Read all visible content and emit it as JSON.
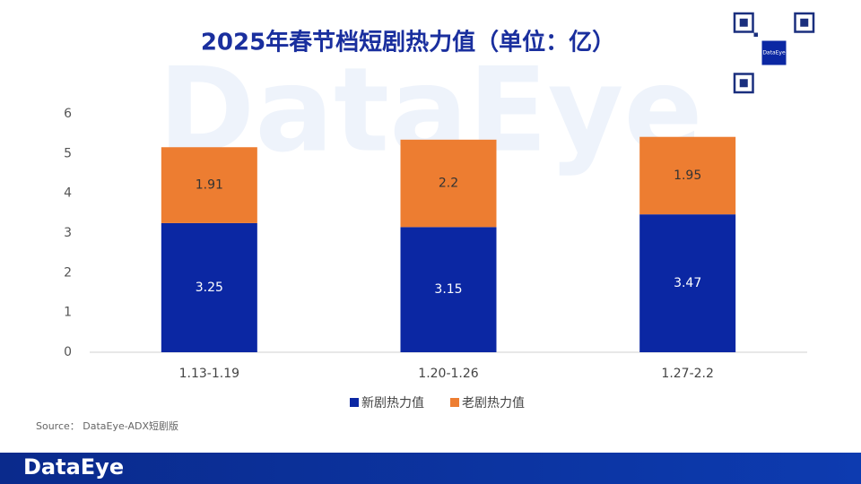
{
  "chart_data": {
    "type": "stacked_bar",
    "title": "2025年春节档短剧热力值（单位：亿）",
    "categories": [
      "1.13-1.19",
      "1.20-1.26",
      "1.27-2.2"
    ],
    "series": [
      {
        "name": "新剧热力值",
        "color": "#0b27a3",
        "values": [
          3.25,
          3.15,
          3.47
        ]
      },
      {
        "name": "老剧热力值",
        "color": "#ed7d31",
        "values": [
          1.91,
          2.2,
          1.95
        ]
      }
    ],
    "ylim": [
      0,
      6
    ],
    "yticks": [
      0,
      1,
      2,
      3,
      4,
      5,
      6
    ],
    "legend": "bottom",
    "source": "Source： DataEye-ADX短剧版",
    "brand": "DataEye"
  }
}
